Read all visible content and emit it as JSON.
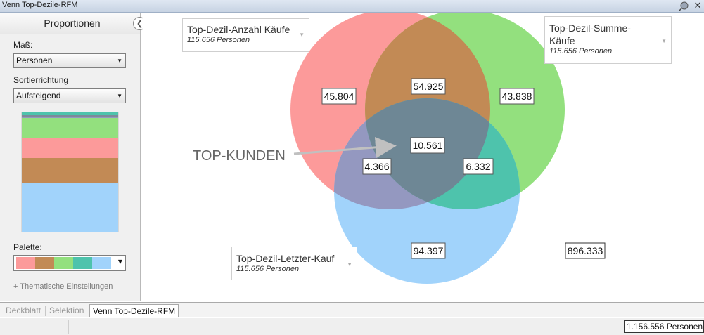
{
  "window": {
    "title": "Venn Top-Dezile-RFM"
  },
  "sidepanel": {
    "header": "Proportionen",
    "measure_label": "Maß:",
    "measure_value": "Personen",
    "sort_label": "Sortierrichtung",
    "sort_value": "Aufsteigend",
    "proportion_bar": [
      {
        "color": "#4ec3ac",
        "share": 0.023
      },
      {
        "color": "#7d8a9a",
        "share": 0.012
      },
      {
        "color": "#9498c0",
        "share": 0.015
      },
      {
        "color": "#93e07e",
        "share": 0.163
      },
      {
        "color": "#fc9a9a",
        "share": 0.17
      },
      {
        "color": "#c28a55",
        "share": 0.21
      },
      {
        "color": "#a1d3fb",
        "share": 0.407
      }
    ],
    "palette_label": "Palette:",
    "palette_colors": [
      "#fc9a9a",
      "#c28a55",
      "#93e07e",
      "#4ec3ac",
      "#a1d3fb"
    ],
    "thematic_link": "+ Thematische Einstellungen"
  },
  "venn": {
    "sets": [
      {
        "name": "Top-Dezil-Anzahl Käufe",
        "size": "115.656 Personen",
        "color": "#fc9a9a"
      },
      {
        "name": "Top-Dezil-Summe-Käufe",
        "name_line1": "Top-Dezil-Summe-",
        "name_line2": "Käufe",
        "size": "115.656 Personen",
        "color": "#93e07e"
      },
      {
        "name": "Top-Dezil-Letzter-Kauf",
        "size": "115.656 Personen",
        "color": "#a1d3fb"
      }
    ],
    "regions": {
      "only_anzahl": "45.804",
      "only_summe": "43.838",
      "only_letzter": "94.397",
      "anzahl_summe": "54.925",
      "anzahl_letzter": "4.366",
      "summe_letzter": "6.332",
      "all_three": "10.561",
      "outside": "896.333"
    },
    "region_colors": {
      "anzahl_summe": "#c28a55",
      "anzahl_letzter": "#9498c0",
      "summe_letzter": "#4ec3ac",
      "all_three": "#6e8795"
    },
    "annotation": "TOP-KUNDEN"
  },
  "tabs": [
    "Deckblatt",
    "Selektion",
    "Venn Top-Dezile-RFM"
  ],
  "active_tab": "Venn Top-Dezile-RFM",
  "status": {
    "total": "1.156.556 Personen"
  }
}
